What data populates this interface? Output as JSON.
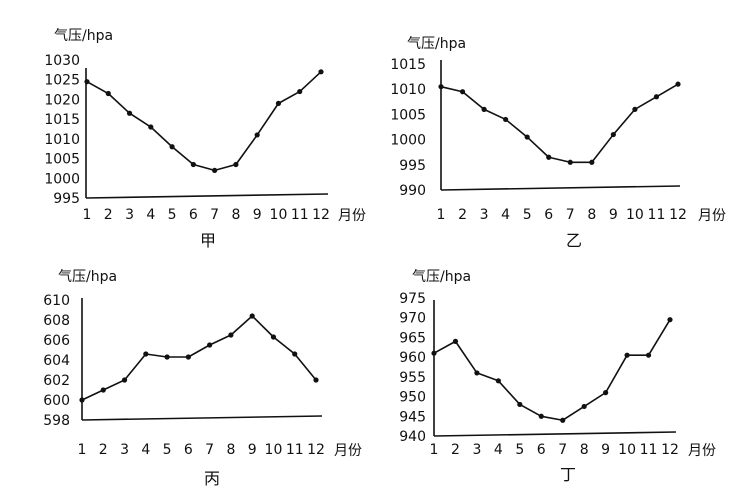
{
  "chart_data": [
    {
      "type": "line",
      "title": "甲",
      "ylabel": "气压/hpa",
      "xlabel": "月份",
      "categories": [
        "1",
        "2",
        "3",
        "4",
        "5",
        "6",
        "7",
        "8",
        "9",
        "10",
        "11",
        "12"
      ],
      "yticks": [
        "1030",
        "1025",
        "1020",
        "1015",
        "1010",
        "1005",
        "1000",
        "995"
      ],
      "ylim": [
        995,
        1030
      ],
      "values": [
        1024.5,
        1021.5,
        1016.5,
        1013,
        1008,
        1003.5,
        1002,
        1003.5,
        1011,
        1019,
        1022,
        1027
      ]
    },
    {
      "type": "line",
      "title": "乙",
      "ylabel": "气压/hpa",
      "xlabel": "月份",
      "categories": [
        "1",
        "2",
        "3",
        "4",
        "5",
        "6",
        "7",
        "8",
        "9",
        "10",
        "11",
        "12"
      ],
      "yticks": [
        "1015",
        "1010",
        "1005",
        "1000",
        "995",
        "990"
      ],
      "ylim": [
        990,
        1015
      ],
      "values": [
        1010.5,
        1009.5,
        1006,
        1004,
        1000.5,
        996.5,
        995.5,
        995.5,
        1001,
        1006,
        1008.5,
        1011
      ]
    },
    {
      "type": "line",
      "title": "丙",
      "ylabel": "气压/hpa",
      "xlabel": "月份",
      "categories": [
        "1",
        "2",
        "3",
        "4",
        "5",
        "6",
        "7",
        "8",
        "9",
        "10",
        "11",
        "12"
      ],
      "yticks": [
        "610",
        "608",
        "606",
        "604",
        "602",
        "600",
        "598"
      ],
      "ylim": [
        598,
        610
      ],
      "values": [
        600,
        601,
        602,
        604.6,
        604.3,
        604.3,
        605.5,
        606.5,
        608.4,
        606.3,
        604.6,
        602
      ]
    },
    {
      "type": "line",
      "title": "丁",
      "ylabel": "气压/hpa",
      "xlabel": "月份",
      "categories": [
        "1",
        "2",
        "3",
        "4",
        "5",
        "6",
        "7",
        "8",
        "9",
        "10",
        "11",
        "12"
      ],
      "yticks": [
        "975",
        "970",
        "965",
        "960",
        "955",
        "950",
        "945",
        "940"
      ],
      "ylim": [
        940,
        975
      ],
      "values": [
        961,
        964,
        956,
        954,
        948,
        945,
        944,
        947.5,
        951,
        960.5,
        960.5,
        969.5
      ]
    }
  ]
}
